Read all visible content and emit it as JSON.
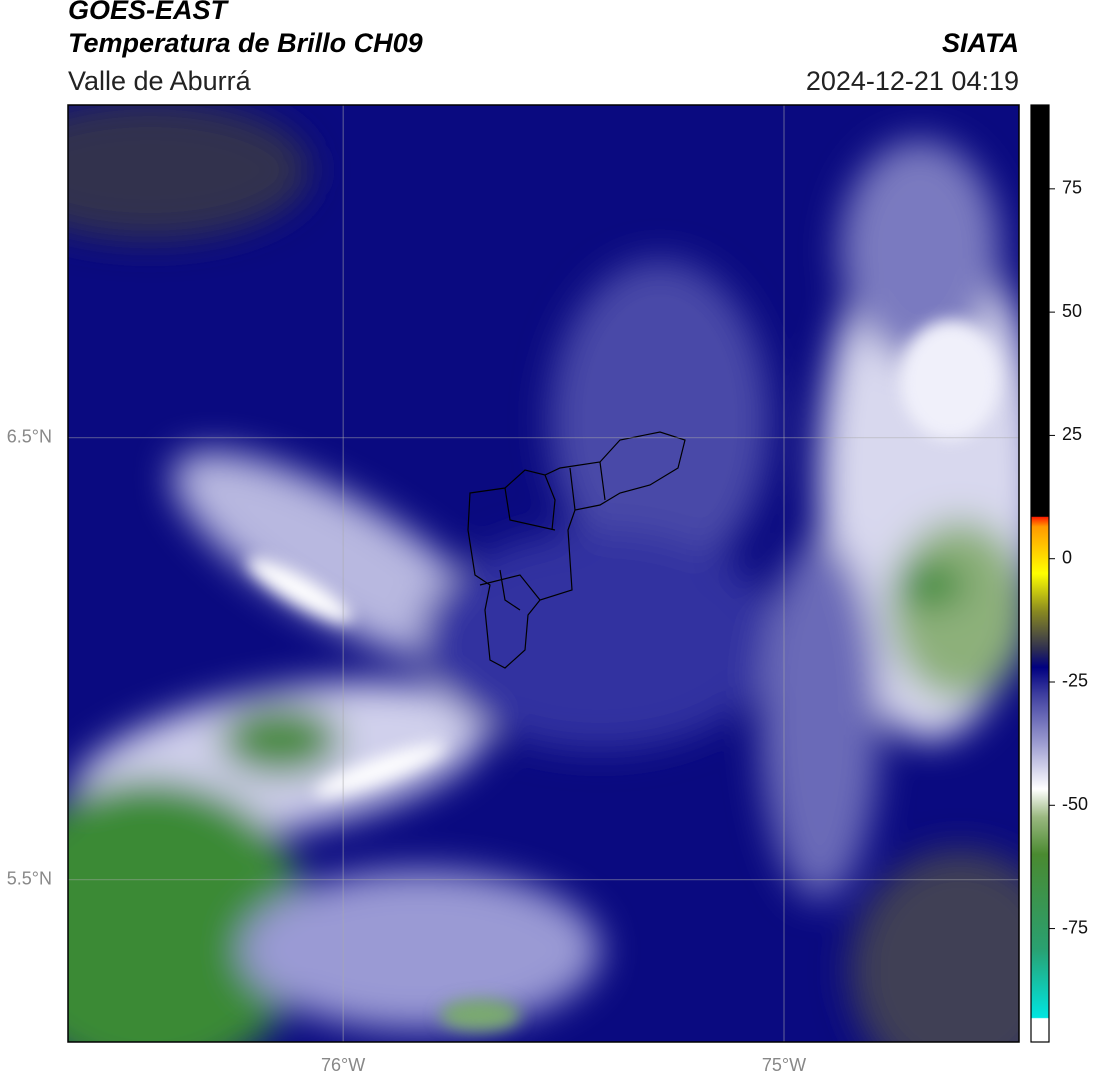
{
  "chart_data": {
    "type": "contour-map",
    "title": "GOES-EAST",
    "subtitle": "Temperatura de Brillo CH09",
    "region": "Valle de Aburrá",
    "source": "SIATA",
    "timestamp": "2024-12-21 04:19",
    "xlim": [
      -76.624,
      -74.467
    ],
    "ylim": [
      5.133,
      7.253
    ],
    "xticks": [
      {
        "value": -76,
        "label": "76°W"
      },
      {
        "value": -75,
        "label": "75°W"
      }
    ],
    "yticks": [
      {
        "value": 6.5,
        "label": "6.5°N"
      },
      {
        "value": 5.5,
        "label": "5.5°N"
      }
    ],
    "grid": true,
    "colorbar": {
      "lim": [
        -98,
        92
      ],
      "ticks": [
        75,
        50,
        25,
        0,
        -25,
        -50,
        -75
      ]
    }
  }
}
